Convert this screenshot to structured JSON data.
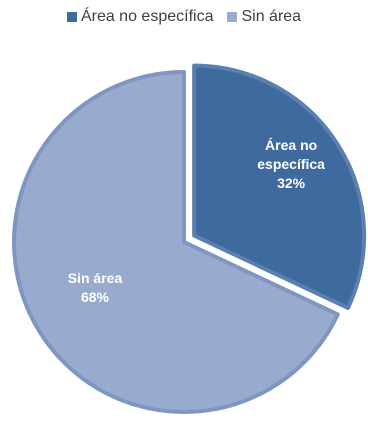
{
  "chart_data": {
    "type": "pie",
    "title": "",
    "legend_position": "top",
    "slices": [
      {
        "name": "Área no específica",
        "value": 32,
        "value_label": "32%",
        "color": "#3E6A9E",
        "label_lines": [
          "Área no",
          "específica",
          "32%"
        ]
      },
      {
        "name": "Sin área",
        "value": 68,
        "value_label": "68%",
        "color": "#98ABCF",
        "label_lines": [
          "Sin área",
          "68%"
        ]
      }
    ],
    "colors": {
      "slice_0_edge": "#5A80B0",
      "slice_1_edge": "#7F96C2"
    }
  }
}
